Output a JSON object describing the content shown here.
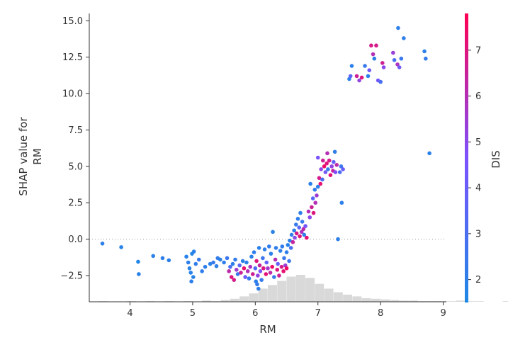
{
  "chart_data": {
    "type": "scatter",
    "xlabel": "RM",
    "ylabel_lines": [
      "SHAP value for",
      "RM"
    ],
    "xlim": [
      3.35,
      9.05
    ],
    "ylim": [
      -4.3,
      15.5
    ],
    "x_ticks": [
      4,
      5,
      6,
      7,
      8,
      9
    ],
    "y_ticks": [
      -2.5,
      0.0,
      2.5,
      5.0,
      7.5,
      10.0,
      12.5,
      15.0
    ],
    "y_tick_labels": [
      "−2.5",
      "0.0",
      "2.5",
      "5.0",
      "7.5",
      "10.0",
      "12.5",
      "15.0"
    ],
    "zero_line": true,
    "colorbar": {
      "label": "DIS",
      "min": 1.5,
      "max": 7.8,
      "ticks": [
        2,
        3,
        4,
        5,
        6,
        7
      ],
      "low_color": "#1e88e5",
      "mid_color": "#7c52ff",
      "high_color": "#ff0052"
    },
    "histogram": {
      "bin_start": 3.5,
      "bin_width": 0.15,
      "counts": [
        1,
        0,
        0,
        1,
        0,
        1,
        0,
        1,
        0,
        1,
        0,
        2,
        1,
        3,
        5,
        9,
        14,
        22,
        28,
        35,
        42,
        45,
        40,
        30,
        22,
        16,
        12,
        9,
        6,
        5,
        4,
        3,
        2,
        2,
        1,
        1,
        1,
        1,
        2,
        1,
        1,
        0,
        0,
        1
      ]
    },
    "points": [
      [
        3.56,
        -0.3,
        2.0
      ],
      [
        3.86,
        -0.55,
        1.8
      ],
      [
        4.13,
        -1.55,
        1.6
      ],
      [
        4.14,
        -2.4,
        1.9
      ],
      [
        4.37,
        -1.15,
        1.9
      ],
      [
        4.52,
        -1.3,
        2.1
      ],
      [
        4.62,
        -1.45,
        2.0
      ],
      [
        4.9,
        -1.2,
        1.9
      ],
      [
        4.93,
        -1.6,
        2.0
      ],
      [
        4.97,
        -2.3,
        1.8
      ],
      [
        4.99,
        -1.0,
        1.7
      ],
      [
        4.95,
        -2.0,
        1.9
      ],
      [
        4.98,
        -2.9,
        2.0
      ],
      [
        5.01,
        -2.6,
        1.8
      ],
      [
        5.02,
        -0.85,
        1.9
      ],
      [
        5.05,
        -1.7,
        2.2
      ],
      [
        5.1,
        -1.4,
        2.3
      ],
      [
        5.15,
        -2.2,
        2.1
      ],
      [
        5.2,
        -1.9,
        2.0
      ],
      [
        5.28,
        -1.7,
        1.9
      ],
      [
        5.33,
        -1.6,
        2.4
      ],
      [
        5.38,
        -1.85,
        2.0
      ],
      [
        5.4,
        -1.3,
        2.2
      ],
      [
        5.44,
        -1.4,
        1.9
      ],
      [
        5.5,
        -1.6,
        2.1
      ],
      [
        5.55,
        -1.3,
        2.5
      ],
      [
        5.58,
        -2.2,
        6.2
      ],
      [
        5.6,
        -1.9,
        3.0
      ],
      [
        5.62,
        -2.6,
        7.0
      ],
      [
        5.64,
        -1.7,
        2.0
      ],
      [
        5.66,
        -2.8,
        6.8
      ],
      [
        5.68,
        -1.4,
        2.2
      ],
      [
        5.7,
        -2.1,
        5.5
      ],
      [
        5.72,
        -2.4,
        2.5
      ],
      [
        5.75,
        -1.8,
        3.5
      ],
      [
        5.77,
        -2.3,
        6.5
      ],
      [
        5.8,
        -1.5,
        2.0
      ],
      [
        5.82,
        -2.0,
        7.2
      ],
      [
        5.84,
        -2.6,
        4.2
      ],
      [
        5.86,
        -1.6,
        2.1
      ],
      [
        5.88,
        -2.2,
        6.0
      ],
      [
        5.9,
        -2.7,
        2.3
      ],
      [
        5.92,
        -1.9,
        5.8
      ],
      [
        5.94,
        -1.2,
        2.0
      ],
      [
        5.96,
        -2.4,
        6.6
      ],
      [
        5.98,
        -0.9,
        2.1
      ],
      [
        6.0,
        -2.0,
        3.2
      ],
      [
        6.01,
        -2.9,
        2.0
      ],
      [
        6.02,
        -1.5,
        7.0
      ],
      [
        6.03,
        -3.1,
        2.2
      ],
      [
        6.04,
        -2.5,
        5.2
      ],
      [
        6.05,
        -3.4,
        2.0
      ],
      [
        6.06,
        -0.6,
        1.9
      ],
      [
        6.07,
        -1.8,
        6.4
      ],
      [
        6.08,
        -2.2,
        4.6
      ],
      [
        6.1,
        -2.8,
        2.3
      ],
      [
        6.12,
        -1.3,
        2.5
      ],
      [
        6.13,
        -2.0,
        6.9
      ],
      [
        6.15,
        -0.7,
        2.0
      ],
      [
        6.17,
        -2.4,
        7.1
      ],
      [
        6.18,
        -1.6,
        3.8
      ],
      [
        6.2,
        -2.0,
        5.6
      ],
      [
        6.22,
        -0.5,
        2.2
      ],
      [
        6.24,
        -2.3,
        6.2
      ],
      [
        6.25,
        -1.0,
        2.0
      ],
      [
        6.27,
        -1.9,
        7.4
      ],
      [
        6.28,
        0.5,
        1.9
      ],
      [
        6.3,
        -2.6,
        2.5
      ],
      [
        6.32,
        -1.4,
        6.0
      ],
      [
        6.33,
        -0.6,
        2.1
      ],
      [
        6.35,
        -2.1,
        7.0
      ],
      [
        6.36,
        -1.7,
        4.0
      ],
      [
        6.38,
        -2.5,
        6.6
      ],
      [
        6.4,
        -0.8,
        2.0
      ],
      [
        6.42,
        -1.9,
        6.8
      ],
      [
        6.43,
        -0.5,
        2.2
      ],
      [
        6.45,
        -2.2,
        7.2
      ],
      [
        6.46,
        -1.3,
        2.4
      ],
      [
        6.48,
        -1.8,
        5.4
      ],
      [
        6.5,
        -0.9,
        2.1
      ],
      [
        6.5,
        -2.0,
        7.5
      ],
      [
        6.52,
        -0.4,
        1.9
      ],
      [
        6.54,
        -1.5,
        2.6
      ],
      [
        6.55,
        -0.1,
        2.0
      ],
      [
        6.57,
        -0.6,
        3.0
      ],
      [
        6.58,
        0.3,
        2.2
      ],
      [
        6.6,
        -0.2,
        6.4
      ],
      [
        6.62,
        0.6,
        2.0
      ],
      [
        6.63,
        0.1,
        5.0
      ],
      [
        6.65,
        1.0,
        2.3
      ],
      [
        6.66,
        0.4,
        6.8
      ],
      [
        6.68,
        1.4,
        2.1
      ],
      [
        6.7,
        0.8,
        3.5
      ],
      [
        6.71,
        0.2,
        7.0
      ],
      [
        6.72,
        1.8,
        2.0
      ],
      [
        6.74,
        0.5,
        5.8
      ],
      [
        6.75,
        1.2,
        2.4
      ],
      [
        6.77,
        0.7,
        6.2
      ],
      [
        6.78,
        0.3,
        2.0
      ],
      [
        6.8,
        0.9,
        4.4
      ],
      [
        6.82,
        0.1,
        7.2
      ],
      [
        6.85,
        1.9,
        6.0
      ],
      [
        6.87,
        1.5,
        5.0
      ],
      [
        6.88,
        3.8,
        1.9
      ],
      [
        6.9,
        2.2,
        6.6
      ],
      [
        6.92,
        2.8,
        3.4
      ],
      [
        6.93,
        1.8,
        7.0
      ],
      [
        6.95,
        3.4,
        2.2
      ],
      [
        6.96,
        2.5,
        6.0
      ],
      [
        6.98,
        3.0,
        5.5
      ],
      [
        7.0,
        3.6,
        2.0
      ],
      [
        7.0,
        5.6,
        4.6
      ],
      [
        7.02,
        4.2,
        6.8
      ],
      [
        7.04,
        3.8,
        7.2
      ],
      [
        7.05,
        4.8,
        5.0
      ],
      [
        7.07,
        4.1,
        3.0
      ],
      [
        7.08,
        5.4,
        6.6
      ],
      [
        7.1,
        5.0,
        7.4
      ],
      [
        7.12,
        4.6,
        4.2
      ],
      [
        7.14,
        5.2,
        7.0
      ],
      [
        7.15,
        5.9,
        6.0
      ],
      [
        7.16,
        4.8,
        2.2
      ],
      [
        7.18,
        5.4,
        6.8
      ],
      [
        7.2,
        4.4,
        7.1
      ],
      [
        7.22,
        5.0,
        5.2
      ],
      [
        7.24,
        4.7,
        6.4
      ],
      [
        7.25,
        5.3,
        3.8
      ],
      [
        7.27,
        6.0,
        2.1
      ],
      [
        7.28,
        4.6,
        4.8
      ],
      [
        7.3,
        5.1,
        6.2
      ],
      [
        7.32,
        0.0,
        2.0
      ],
      [
        7.35,
        4.6,
        3.0
      ],
      [
        7.37,
        5.0,
        2.6
      ],
      [
        7.38,
        2.5,
        2.0
      ],
      [
        7.4,
        4.8,
        4.0
      ],
      [
        7.5,
        11.0,
        2.0
      ],
      [
        7.52,
        11.2,
        3.6
      ],
      [
        7.54,
        11.9,
        1.9
      ],
      [
        7.62,
        11.2,
        6.6
      ],
      [
        7.66,
        10.9,
        5.2
      ],
      [
        7.7,
        11.1,
        7.0
      ],
      [
        7.75,
        11.9,
        2.4
      ],
      [
        7.8,
        11.2,
        2.0
      ],
      [
        7.82,
        11.6,
        4.2
      ],
      [
        7.85,
        13.3,
        6.8
      ],
      [
        7.88,
        12.7,
        6.0
      ],
      [
        7.9,
        12.4,
        2.1
      ],
      [
        7.93,
        13.3,
        6.8
      ],
      [
        7.96,
        10.9,
        4.4
      ],
      [
        8.0,
        10.8,
        3.0
      ],
      [
        8.03,
        12.1,
        6.6
      ],
      [
        8.05,
        11.8,
        5.0
      ],
      [
        8.2,
        12.8,
        5.4
      ],
      [
        8.22,
        12.3,
        3.0
      ],
      [
        8.27,
        12.0,
        5.8
      ],
      [
        8.28,
        14.5,
        2.0
      ],
      [
        8.3,
        11.8,
        4.2
      ],
      [
        8.33,
        12.4,
        2.4
      ],
      [
        8.37,
        13.8,
        2.0
      ],
      [
        8.7,
        12.9,
        2.0
      ],
      [
        8.72,
        12.4,
        2.2
      ],
      [
        8.78,
        5.9,
        1.9
      ]
    ]
  }
}
